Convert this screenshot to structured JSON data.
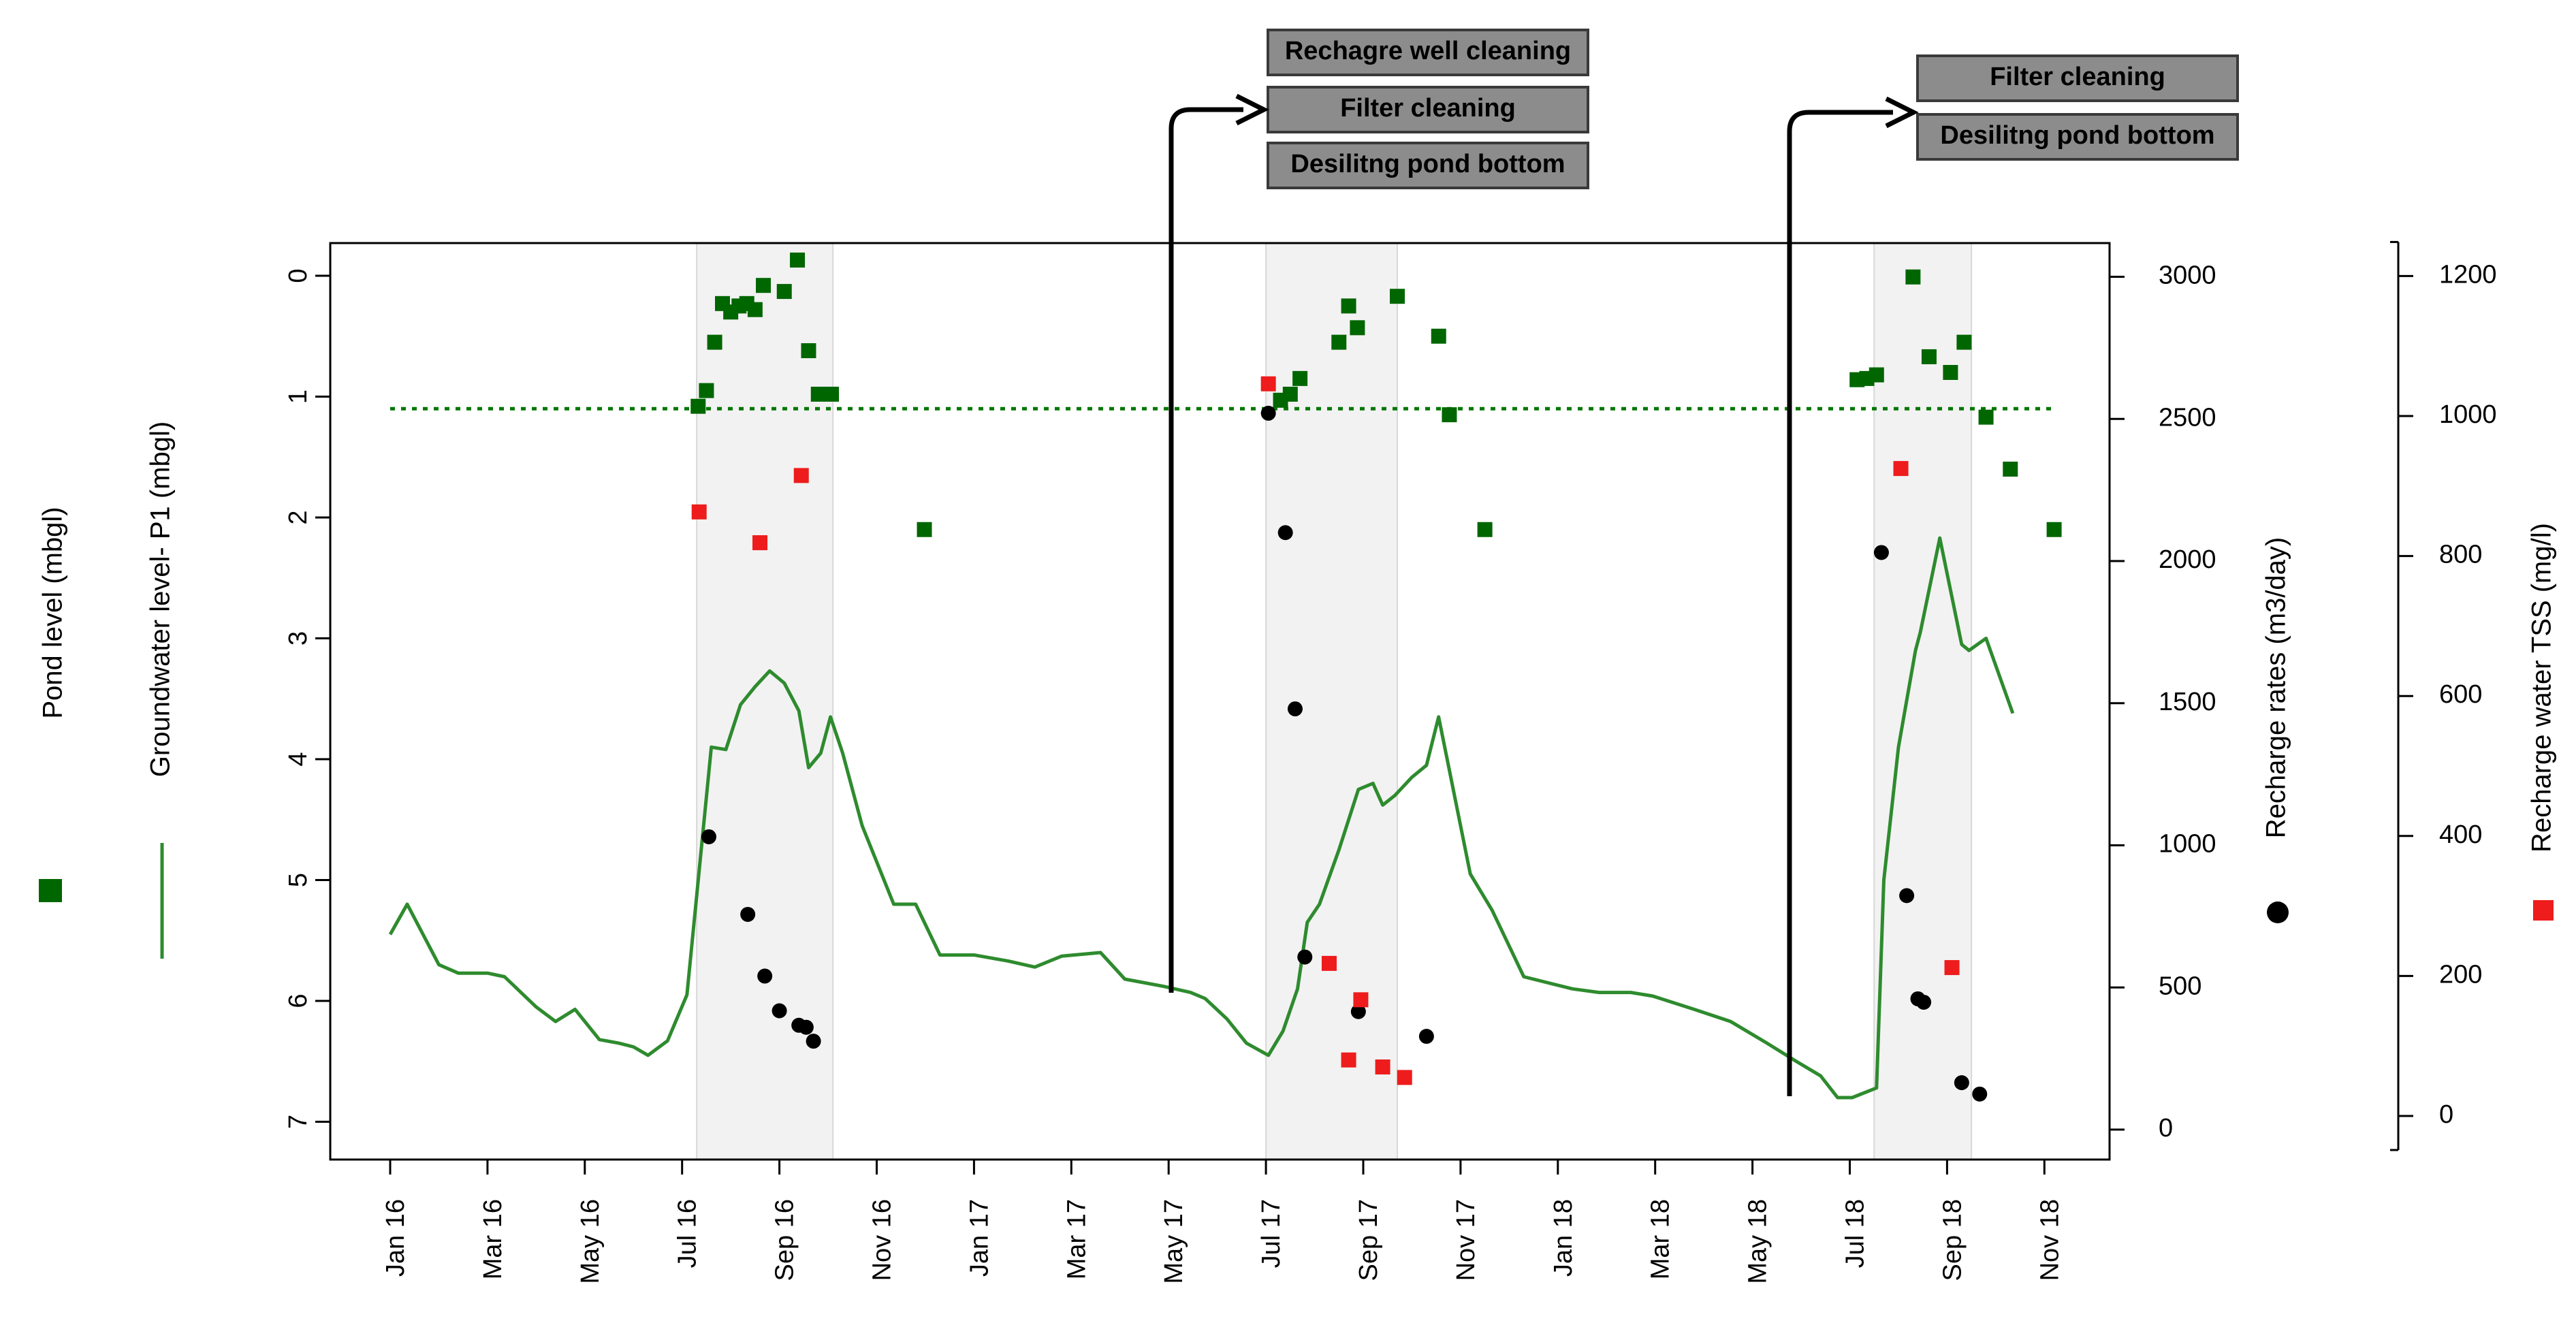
{
  "chart_data": {
    "type": "line",
    "title": "",
    "xlabel": "",
    "x_ticks": [
      "Jan 16",
      "Mar 16",
      "May 16",
      "Jul 16",
      "Sep 16",
      "Nov 16",
      "Jan 17",
      "Mar 17",
      "May 17",
      "Jul 17",
      "Sep 17",
      "Nov 17",
      "Jan 18",
      "Mar 18",
      "May 18",
      "Jul 18",
      "Sep 18",
      "Nov 18"
    ],
    "left_axes": [
      {
        "label": "Pond level (mbgl)",
        "legend_symbol": "square",
        "color": "#006600"
      },
      {
        "label": "Groundwater level- P1 (mbgl)",
        "legend_symbol": "line",
        "color": "#2e8b2e"
      }
    ],
    "left_axis": {
      "ylim": [
        0,
        7
      ],
      "ticks": [
        "0",
        "1",
        "2",
        "3",
        "4",
        "5",
        "6",
        "7"
      ],
      "reversed": true
    },
    "right_axes": [
      {
        "label": "Recharge rates (m3/day)",
        "legend_symbol": "circle",
        "color": "#000000",
        "ylim": [
          0,
          3000
        ],
        "ticks": [
          "0",
          "500",
          "1000",
          "1500",
          "2000",
          "2500",
          "3000"
        ]
      },
      {
        "label": "Recharge water TSS (mg/l)",
        "legend_symbol": "square",
        "color": "#ee1c1c",
        "ylim": [
          0,
          1200
        ],
        "ticks": [
          "0",
          "200",
          "400",
          "600",
          "800",
          "1000",
          "1200"
        ]
      }
    ],
    "shaded_periods": [
      [
        6.3,
        9.1
      ],
      [
        18.0,
        20.7
      ],
      [
        30.5,
        32.5
      ]
    ],
    "reference_line": {
      "axis": "left",
      "y": 1.1,
      "x": [
        0,
        34.2
      ],
      "style": "dotted",
      "color": "#007700"
    },
    "series": [
      {
        "name": "Groundwater level- P1",
        "axis": "left",
        "type": "line",
        "color": "#2e8b2e",
        "points": [
          [
            0,
            5.45
          ],
          [
            0.35,
            5.2
          ],
          [
            1,
            5.7
          ],
          [
            1.4,
            5.77
          ],
          [
            2,
            5.77
          ],
          [
            2.35,
            5.8
          ],
          [
            3,
            6.05
          ],
          [
            3.4,
            6.17
          ],
          [
            3.8,
            6.07
          ],
          [
            4.3,
            6.32
          ],
          [
            4.7,
            6.35
          ],
          [
            5,
            6.38
          ],
          [
            5.3,
            6.45
          ],
          [
            5.7,
            6.33
          ],
          [
            6.1,
            5.95
          ],
          [
            6.6,
            3.9
          ],
          [
            6.9,
            3.92
          ],
          [
            7.2,
            3.55
          ],
          [
            7.5,
            3.4
          ],
          [
            7.8,
            3.27
          ],
          [
            8.1,
            3.37
          ],
          [
            8.4,
            3.6
          ],
          [
            8.6,
            4.07
          ],
          [
            8.85,
            3.95
          ],
          [
            9.05,
            3.65
          ],
          [
            9.3,
            3.95
          ],
          [
            9.7,
            4.55
          ],
          [
            10.35,
            5.2
          ],
          [
            10.8,
            5.2
          ],
          [
            11.3,
            5.62
          ],
          [
            12,
            5.62
          ],
          [
            12.7,
            5.67
          ],
          [
            13.25,
            5.72
          ],
          [
            13.8,
            5.63
          ],
          [
            14.6,
            5.6
          ],
          [
            15.1,
            5.82
          ],
          [
            15.9,
            5.88
          ],
          [
            16.45,
            5.93
          ],
          [
            16.75,
            5.98
          ],
          [
            17.2,
            6.15
          ],
          [
            17.6,
            6.35
          ],
          [
            18.05,
            6.45
          ],
          [
            18.35,
            6.25
          ],
          [
            18.65,
            5.9
          ],
          [
            18.85,
            5.35
          ],
          [
            19.1,
            5.2
          ],
          [
            19.5,
            4.75
          ],
          [
            19.9,
            4.25
          ],
          [
            20.2,
            4.2
          ],
          [
            20.4,
            4.38
          ],
          [
            20.65,
            4.3
          ],
          [
            21,
            4.15
          ],
          [
            21.3,
            4.05
          ],
          [
            21.55,
            3.65
          ],
          [
            22.2,
            4.95
          ],
          [
            22.65,
            5.25
          ],
          [
            23.3,
            5.8
          ],
          [
            24.3,
            5.9
          ],
          [
            24.85,
            5.93
          ],
          [
            25.5,
            5.93
          ],
          [
            25.95,
            5.96
          ],
          [
            26.8,
            6.07
          ],
          [
            27.55,
            6.17
          ],
          [
            28.3,
            6.35
          ],
          [
            28.9,
            6.5
          ],
          [
            29.4,
            6.62
          ],
          [
            29.75,
            6.8
          ],
          [
            30.05,
            6.8
          ],
          [
            30.55,
            6.72
          ],
          [
            30.7,
            5.0
          ],
          [
            31,
            3.9
          ],
          [
            31.35,
            3.1
          ],
          [
            31.45,
            2.95
          ],
          [
            31.85,
            2.17
          ],
          [
            32.3,
            3.05
          ],
          [
            32.45,
            3.1
          ],
          [
            32.8,
            3.0
          ],
          [
            33.35,
            3.62
          ]
        ]
      },
      {
        "name": "Pond level",
        "axis": "left",
        "type": "scatter",
        "marker": "square",
        "color": "#006600",
        "points": [
          [
            6.33,
            1.08
          ],
          [
            6.5,
            0.95
          ],
          [
            6.67,
            0.55
          ],
          [
            6.83,
            0.23
          ],
          [
            7,
            0.3
          ],
          [
            7.17,
            0.25
          ],
          [
            7.33,
            0.23
          ],
          [
            7.5,
            0.28
          ],
          [
            7.67,
            0.08
          ],
          [
            8.1,
            0.13
          ],
          [
            8.37,
            -0.13
          ],
          [
            8.6,
            0.62
          ],
          [
            8.8,
            0.98
          ],
          [
            9.07,
            0.98
          ],
          [
            10.98,
            2.1
          ],
          [
            18.3,
            1.03
          ],
          [
            18.5,
            0.98
          ],
          [
            18.7,
            0.85
          ],
          [
            19.5,
            0.55
          ],
          [
            19.7,
            0.25
          ],
          [
            19.88,
            0.43
          ],
          [
            20.7,
            0.17
          ],
          [
            21.55,
            0.5
          ],
          [
            21.77,
            1.15
          ],
          [
            22.5,
            2.1
          ],
          [
            30.15,
            0.86
          ],
          [
            30.35,
            0.85
          ],
          [
            30.55,
            0.82
          ],
          [
            31.3,
            0.01
          ],
          [
            31.63,
            0.67
          ],
          [
            32.07,
            0.8
          ],
          [
            32.35,
            0.55
          ],
          [
            32.8,
            1.17
          ],
          [
            33.3,
            1.6
          ],
          [
            34.2,
            2.1
          ]
        ]
      },
      {
        "name": "Recharge rates",
        "axis": "right1",
        "type": "scatter",
        "marker": "circle",
        "color": "#000000",
        "points": [
          [
            6.55,
            1030
          ],
          [
            7.35,
            757
          ],
          [
            7.7,
            540
          ],
          [
            8.0,
            418
          ],
          [
            8.4,
            367
          ],
          [
            8.55,
            360
          ],
          [
            8.7,
            311
          ],
          [
            18.05,
            2520
          ],
          [
            18.4,
            2100
          ],
          [
            18.6,
            1480
          ],
          [
            18.8,
            607
          ],
          [
            19.9,
            415
          ],
          [
            21.3,
            328
          ],
          [
            30.65,
            2030
          ],
          [
            31.17,
            823
          ],
          [
            31.4,
            460
          ],
          [
            31.52,
            448
          ],
          [
            32.3,
            165
          ],
          [
            32.67,
            125
          ]
        ]
      },
      {
        "name": "Recharge water TSS",
        "axis": "right1_tss",
        "type": "scatter",
        "marker": "square",
        "color": "#ee1c1c",
        "points": [
          [
            6.35,
            863
          ],
          [
            7.6,
            819
          ],
          [
            8.45,
            915
          ],
          [
            18.05,
            1046
          ],
          [
            19.3,
            218
          ],
          [
            19.95,
            166
          ],
          [
            19.7,
            80
          ],
          [
            20.4,
            70
          ],
          [
            20.85,
            55
          ],
          [
            31.05,
            925
          ],
          [
            32.1,
            212
          ]
        ]
      }
    ],
    "annotations": [
      {
        "target_month": 17.3,
        "labels": [
          "Rechagre well cleaning",
          "Filter cleaning",
          "Desilitng pond bottom"
        ]
      },
      {
        "target_month": 29.5,
        "labels": [
          "Filter cleaning",
          "Desilitng pond bottom"
        ]
      }
    ]
  }
}
